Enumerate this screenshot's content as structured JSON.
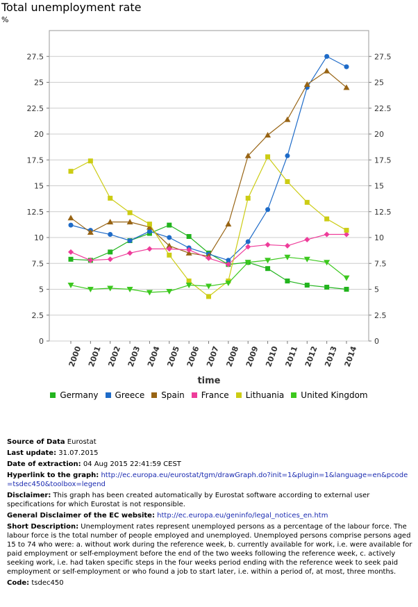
{
  "header": {
    "title": "Total unemployment rate",
    "unit": "%"
  },
  "colors": {
    "Germany": "#22b41e",
    "Greece": "#1e6bc8",
    "Spain": "#986414",
    "France": "#ee3c9a",
    "Lithuania": "#cccc14",
    "United Kingdom": "#3cc81e",
    "grid": "#cccccc"
  },
  "chart_data": {
    "type": "line",
    "title": "Total unemployment rate",
    "ylabel": "%",
    "xlabel": "time",
    "x": [
      "2000",
      "2001",
      "2002",
      "2003",
      "2004",
      "2005",
      "2006",
      "2007",
      "2008",
      "2009",
      "2010",
      "2011",
      "2012",
      "2013",
      "2014"
    ],
    "ylim": [
      0,
      30
    ],
    "yticks": [
      "0",
      "2.5",
      "5",
      "7.5",
      "10",
      "12.5",
      "15",
      "17.5",
      "20",
      "22.5",
      "25",
      "27.5"
    ],
    "grid": true,
    "legend_position": "bottom",
    "series": [
      {
        "name": "Germany",
        "marker": "square",
        "values": [
          7.9,
          7.8,
          8.6,
          9.7,
          10.4,
          11.2,
          10.1,
          8.5,
          7.4,
          7.6,
          7.0,
          5.8,
          5.4,
          5.2,
          5.0
        ]
      },
      {
        "name": "Greece",
        "marker": "circle",
        "values": [
          11.2,
          10.7,
          10.3,
          9.7,
          10.6,
          10.0,
          9.0,
          8.4,
          7.8,
          9.6,
          12.7,
          17.9,
          24.5,
          27.5,
          26.5
        ]
      },
      {
        "name": "Spain",
        "marker": "triangle-up",
        "values": [
          11.9,
          10.5,
          11.5,
          11.5,
          11.0,
          9.2,
          8.5,
          8.2,
          11.3,
          17.9,
          19.9,
          21.4,
          24.8,
          26.1,
          24.5
        ]
      },
      {
        "name": "France",
        "marker": "diamond",
        "values": [
          8.6,
          7.8,
          7.9,
          8.5,
          8.9,
          8.9,
          8.8,
          8.0,
          7.4,
          9.1,
          9.3,
          9.2,
          9.8,
          10.3,
          10.3
        ]
      },
      {
        "name": "Lithuania",
        "marker": "square",
        "values": [
          16.4,
          17.4,
          13.8,
          12.4,
          11.3,
          8.3,
          5.8,
          4.3,
          5.8,
          13.8,
          17.8,
          15.4,
          13.4,
          11.8,
          10.7
        ]
      },
      {
        "name": "United Kingdom",
        "marker": "triangle-down",
        "values": [
          5.4,
          5.0,
          5.1,
          5.0,
          4.7,
          4.8,
          5.4,
          5.3,
          5.6,
          7.6,
          7.8,
          8.1,
          7.9,
          7.6,
          6.1
        ]
      }
    ]
  },
  "meta": {
    "source_label": "Source of Data",
    "source_value": "Eurostat",
    "last_update_label": "Last update:",
    "last_update_value": "31.07.2015",
    "extraction_label": "Date of extraction:",
    "extraction_value": "04 Aug 2015 22:41:59 CEST",
    "hyperlink_label": "Hyperlink to the graph:",
    "hyperlink_value": "http://ec.europa.eu/eurostat/tgm/drawGraph.do?init=1&plugin=1&language=en&pcode=tsdec450&toolbox=legend",
    "disclaimer_label": "Disclaimer:",
    "disclaimer_value": "This graph has been created automatically by Eurostat software according to external user specifications for which Eurostat is not responsible.",
    "general_label": "General Disclaimer of the EC website:",
    "general_value": "http://ec.europa.eu/geninfo/legal_notices_en.htm",
    "short_label": "Short Description:",
    "short_value": "Unemployment rates represent unemployed persons as a percentage of the labour force. The labour force is the total number of people employed and unemployed. Unemployed persons comprise persons aged 15 to 74 who were: a. without work during the reference week, b. currently available for work, i.e. were available for paid employment or self-employment before the end of the two weeks following the reference week, c. actively seeking work, i.e. had taken specific steps in the four weeks period ending with the reference week to seek paid employment or self-employment or who found a job to start later, i.e. within a period of, at most, three months.",
    "code_label": "Code:",
    "code_value": "tsdec450"
  }
}
